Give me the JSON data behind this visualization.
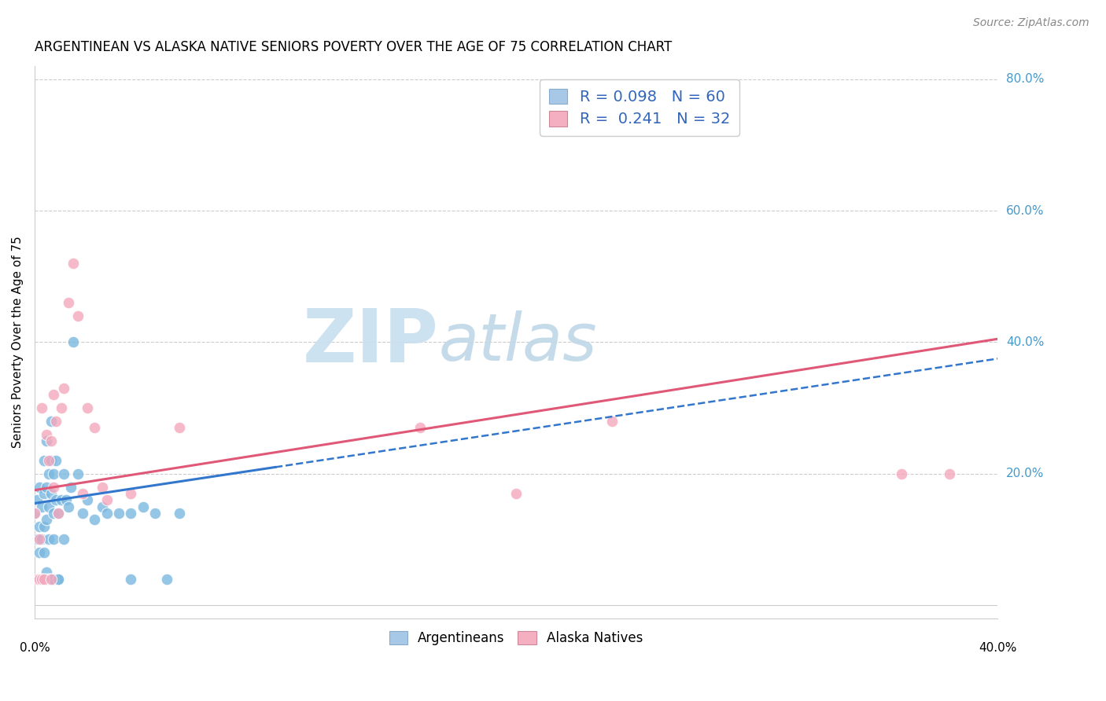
{
  "title": "ARGENTINEAN VS ALASKA NATIVE SENIORS POVERTY OVER THE AGE OF 75 CORRELATION CHART",
  "source": "Source: ZipAtlas.com",
  "ylabel": "Seniors Poverty Over the Age of 75",
  "xlim": [
    0.0,
    0.4
  ],
  "ylim": [
    -0.02,
    0.82
  ],
  "background_color": "#ffffff",
  "grid_color": "#cccccc",
  "legend_R1": "R = 0.098",
  "legend_N1": "N = 60",
  "legend_R2": "R =  0.241",
  "legend_N2": "N = 32",
  "legend_color_blue": "#a8c8e8",
  "legend_color_pink": "#f4b0c0",
  "watermark_zip": "ZIP",
  "watermark_atlas": "atlas",
  "watermark_color_zip": "#c8dff0",
  "watermark_color_atlas": "#c0d8e8",
  "title_fontsize": 12,
  "axis_label_fontsize": 11,
  "tick_fontsize": 11,
  "source_fontsize": 10,
  "argentinean_color": "#7bb8e0",
  "alaska_color": "#f4a8bc",
  "line_blue_color": "#3377cc",
  "line_pink_color": "#e05878",
  "line_blue_solid_end": 0.1,
  "line_blue_intercept": 0.155,
  "line_blue_slope": 0.55,
  "line_pink_intercept": 0.175,
  "line_pink_slope": 0.575,
  "argentinean_points_x": [
    0.0,
    0.001,
    0.001,
    0.002,
    0.002,
    0.002,
    0.003,
    0.003,
    0.003,
    0.004,
    0.004,
    0.004,
    0.004,
    0.005,
    0.005,
    0.005,
    0.005,
    0.006,
    0.006,
    0.006,
    0.006,
    0.007,
    0.007,
    0.007,
    0.008,
    0.008,
    0.008,
    0.009,
    0.009,
    0.009,
    0.01,
    0.01,
    0.011,
    0.012,
    0.012,
    0.013,
    0.014,
    0.015,
    0.016,
    0.018,
    0.02,
    0.022,
    0.025,
    0.028,
    0.03,
    0.035,
    0.04,
    0.04,
    0.045,
    0.05,
    0.055,
    0.06,
    0.002,
    0.003,
    0.004,
    0.005,
    0.006,
    0.007,
    0.008,
    0.01
  ],
  "argentinean_points_y": [
    0.14,
    0.16,
    0.1,
    0.18,
    0.12,
    0.08,
    0.15,
    0.1,
    0.04,
    0.12,
    0.08,
    0.17,
    0.22,
    0.13,
    0.18,
    0.25,
    0.05,
    0.15,
    0.2,
    0.1,
    0.04,
    0.17,
    0.22,
    0.28,
    0.14,
    0.2,
    0.1,
    0.16,
    0.22,
    0.04,
    0.14,
    0.04,
    0.16,
    0.2,
    0.1,
    0.16,
    0.15,
    0.18,
    0.4,
    0.2,
    0.14,
    0.16,
    0.13,
    0.15,
    0.14,
    0.14,
    0.14,
    0.04,
    0.15,
    0.14,
    0.04,
    0.14,
    0.04,
    0.04,
    0.04,
    0.04,
    0.04,
    0.04,
    0.04,
    0.04
  ],
  "alaska_points_x": [
    0.0,
    0.001,
    0.002,
    0.002,
    0.003,
    0.003,
    0.004,
    0.005,
    0.006,
    0.007,
    0.007,
    0.008,
    0.008,
    0.009,
    0.01,
    0.011,
    0.012,
    0.014,
    0.016,
    0.018,
    0.02,
    0.022,
    0.025,
    0.028,
    0.03,
    0.04,
    0.06,
    0.16,
    0.2,
    0.24,
    0.36,
    0.38
  ],
  "alaska_points_y": [
    0.14,
    0.04,
    0.1,
    0.04,
    0.04,
    0.3,
    0.04,
    0.26,
    0.22,
    0.25,
    0.04,
    0.18,
    0.32,
    0.28,
    0.14,
    0.3,
    0.33,
    0.46,
    0.52,
    0.44,
    0.17,
    0.3,
    0.27,
    0.18,
    0.16,
    0.17,
    0.27,
    0.27,
    0.17,
    0.28,
    0.2,
    0.2
  ]
}
